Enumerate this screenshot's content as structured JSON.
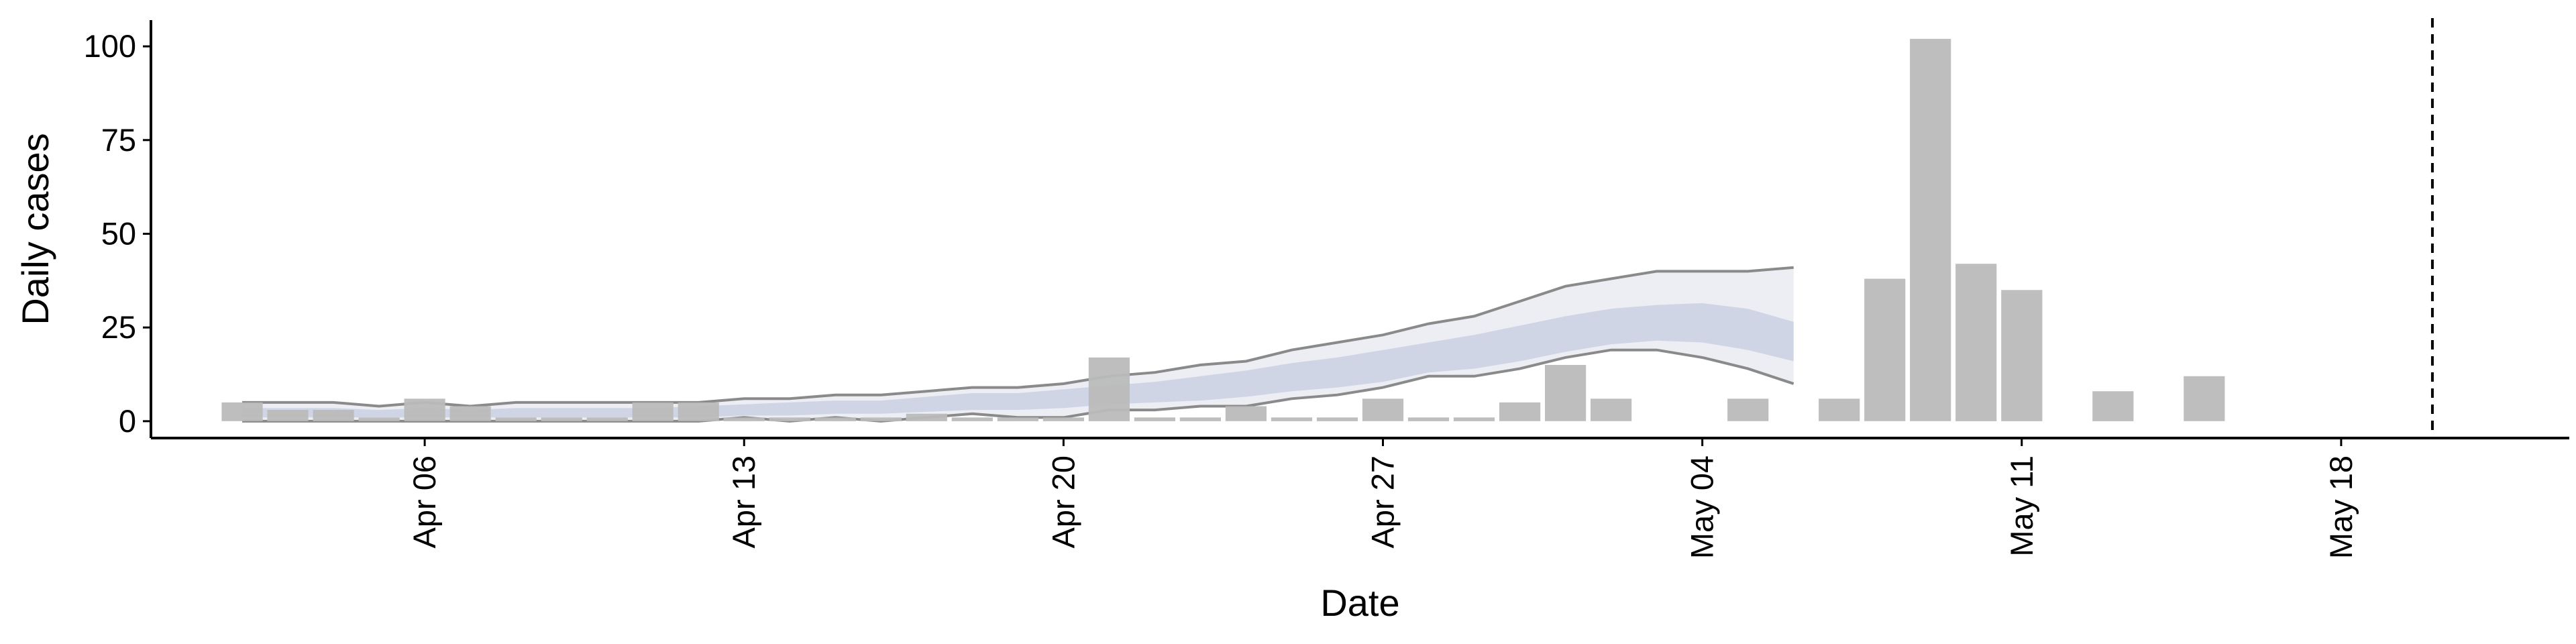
{
  "chart_data": {
    "type": "bar",
    "xlabel": "Date",
    "ylabel": "Daily cases",
    "x_range": [
      "2020-03-31",
      "2020-05-23"
    ],
    "ylim": [
      -4.5,
      107
    ],
    "y_ticks": [
      0,
      25,
      50,
      75,
      100
    ],
    "x_ticks": [
      {
        "date": "2020-04-06",
        "label": "Apr 06"
      },
      {
        "date": "2020-04-13",
        "label": "Apr 13"
      },
      {
        "date": "2020-04-20",
        "label": "Apr 20"
      },
      {
        "date": "2020-04-27",
        "label": "Apr 27"
      },
      {
        "date": "2020-05-04",
        "label": "May 04"
      },
      {
        "date": "2020-05-11",
        "label": "May 11"
      },
      {
        "date": "2020-05-18",
        "label": "May 18"
      }
    ],
    "bars": [
      {
        "date": "2020-04-02",
        "value": 5
      },
      {
        "date": "2020-04-03",
        "value": 3
      },
      {
        "date": "2020-04-04",
        "value": 3
      },
      {
        "date": "2020-04-05",
        "value": 1
      },
      {
        "date": "2020-04-06",
        "value": 6
      },
      {
        "date": "2020-04-07",
        "value": 4
      },
      {
        "date": "2020-04-08",
        "value": 1
      },
      {
        "date": "2020-04-09",
        "value": 1
      },
      {
        "date": "2020-04-10",
        "value": 1
      },
      {
        "date": "2020-04-11",
        "value": 5
      },
      {
        "date": "2020-04-12",
        "value": 5
      },
      {
        "date": "2020-04-13",
        "value": 1
      },
      {
        "date": "2020-04-14",
        "value": 1
      },
      {
        "date": "2020-04-15",
        "value": 1
      },
      {
        "date": "2020-04-16",
        "value": 1
      },
      {
        "date": "2020-04-17",
        "value": 2
      },
      {
        "date": "2020-04-18",
        "value": 1
      },
      {
        "date": "2020-04-19",
        "value": 1
      },
      {
        "date": "2020-04-20",
        "value": 1
      },
      {
        "date": "2020-04-21",
        "value": 17
      },
      {
        "date": "2020-04-22",
        "value": 1
      },
      {
        "date": "2020-04-23",
        "value": 1
      },
      {
        "date": "2020-04-24",
        "value": 4
      },
      {
        "date": "2020-04-25",
        "value": 1
      },
      {
        "date": "2020-04-26",
        "value": 1
      },
      {
        "date": "2020-04-27",
        "value": 6
      },
      {
        "date": "2020-04-28",
        "value": 1
      },
      {
        "date": "2020-04-29",
        "value": 1
      },
      {
        "date": "2020-04-30",
        "value": 5
      },
      {
        "date": "2020-05-01",
        "value": 15
      },
      {
        "date": "2020-05-02",
        "value": 6
      },
      {
        "date": "2020-05-05",
        "value": 6
      },
      {
        "date": "2020-05-07",
        "value": 6
      },
      {
        "date": "2020-05-08",
        "value": 38
      },
      {
        "date": "2020-05-09",
        "value": 102
      },
      {
        "date": "2020-05-10",
        "value": 42
      },
      {
        "date": "2020-05-11",
        "value": 35
      },
      {
        "date": "2020-05-13",
        "value": 8
      },
      {
        "date": "2020-05-15",
        "value": 12
      }
    ],
    "band_dates": [
      "2020-04-02",
      "2020-04-03",
      "2020-04-04",
      "2020-04-05",
      "2020-04-06",
      "2020-04-07",
      "2020-04-08",
      "2020-04-09",
      "2020-04-10",
      "2020-04-11",
      "2020-04-12",
      "2020-04-13",
      "2020-04-14",
      "2020-04-15",
      "2020-04-16",
      "2020-04-17",
      "2020-04-18",
      "2020-04-19",
      "2020-04-20",
      "2020-04-21",
      "2020-04-22",
      "2020-04-23",
      "2020-04-24",
      "2020-04-25",
      "2020-04-26",
      "2020-04-27",
      "2020-04-28",
      "2020-04-29",
      "2020-04-30",
      "2020-05-01",
      "2020-05-02",
      "2020-05-03",
      "2020-05-04",
      "2020-05-05",
      "2020-05-06"
    ],
    "outer_upper": [
      5,
      5,
      5,
      4,
      5,
      4,
      5,
      5,
      5,
      5,
      5,
      6,
      6,
      7,
      7,
      8,
      9,
      9,
      10,
      12,
      13,
      15,
      16,
      19,
      21,
      23,
      26,
      28,
      32,
      36,
      38,
      40,
      40,
      40,
      41
    ],
    "outer_lower": [
      0,
      0,
      0,
      0,
      0,
      0,
      0,
      0,
      0,
      0,
      0,
      1,
      0,
      1,
      0,
      1,
      2,
      1,
      1,
      3,
      3,
      4,
      4,
      6,
      7,
      9,
      12,
      12,
      14,
      17,
      19,
      19,
      17,
      14,
      10
    ],
    "inner_upper": [
      3.5,
      3.5,
      3.5,
      3,
      3.5,
      3,
      3.5,
      3.5,
      3.5,
      3.5,
      4,
      4.5,
      5,
      5.5,
      5.5,
      6.5,
      7.5,
      7.5,
      8.5,
      9.5,
      10.5,
      12,
      13.5,
      15.5,
      17,
      19,
      21,
      23,
      25.5,
      28,
      30,
      31,
      31.5,
      30,
      26.5
    ],
    "inner_lower": [
      1,
      1,
      1,
      1,
      1,
      1,
      1,
      1,
      1,
      1,
      1,
      1.5,
      1.5,
      2,
      2,
      2.5,
      3,
      3,
      3.5,
      4.5,
      5,
      5.5,
      6.5,
      8,
      9,
      10.5,
      13,
      14,
      16,
      18.5,
      20.5,
      21.5,
      21,
      19,
      16
    ],
    "vline_date": "2020-05-20",
    "colors": {
      "bar": "#bbbbbb",
      "band_outer": "#eceef4",
      "band_inner": "#d0d5e6",
      "band_outline": "#8a8a8a",
      "axis": "#000000",
      "vline": "#000000"
    }
  }
}
